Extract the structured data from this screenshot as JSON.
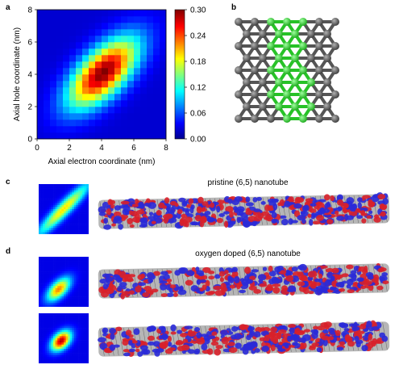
{
  "panels": {
    "a": {
      "label": "a",
      "chart_data": {
        "type": "heatmap",
        "xlabel": "Axial electron coordinate (nm)",
        "ylabel": "Axial hole coordinate (nm)",
        "xlim": [
          0,
          8
        ],
        "ylim": [
          0,
          8
        ],
        "xticks": [
          "0",
          "2",
          "4",
          "6",
          "8"
        ],
        "yticks": [
          "0",
          "2",
          "4",
          "6",
          "8"
        ],
        "colorbar_ticks": [
          "0.00",
          "0.06",
          "0.12",
          "0.18",
          "0.24",
          "0.30"
        ],
        "colorbar_range": [
          0,
          0.3
        ],
        "grid_cells": 20,
        "peak": {
          "x": 4.1,
          "y": 4.1,
          "value": 0.3
        },
        "colormap": "jet"
      }
    },
    "b": {
      "label": "b",
      "colors": {
        "carbon": "#5a5a5a",
        "highlight": "#2fd12f"
      }
    },
    "c": {
      "label": "c",
      "caption": "pristine (6,5) nanotube"
    },
    "d": {
      "label": "d",
      "caption": "oxygen doped (6,5) nanotube"
    },
    "colors": {
      "lobe_red": "#d8202a",
      "lobe_blue": "#2a2ad8",
      "tube_gray": "#7a7a7a"
    }
  }
}
